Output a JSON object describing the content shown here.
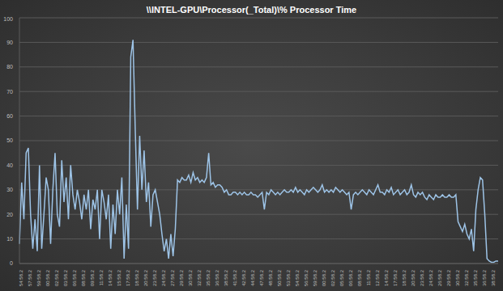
{
  "chart_data": {
    "type": "line",
    "title": "\\\\INTEL-GPU\\Processor(_Total)\\% Processor Time",
    "categories": [
      "54:58.2",
      null,
      null,
      null,
      "57:58.2",
      null,
      null,
      null,
      "59:58.2",
      null,
      null,
      null,
      "00:58.2",
      null,
      null,
      null,
      "02:58.2",
      null,
      null,
      null,
      "03:58.2",
      null,
      null,
      null,
      "06:58.2",
      null,
      null,
      null,
      "08:58.2",
      null,
      null,
      null,
      "09:58.2",
      null,
      null,
      null,
      "11:58.2",
      null,
      null,
      null,
      "14:58.2",
      null,
      null,
      null,
      "15:58.2",
      null,
      null,
      null,
      "17:58.2",
      null,
      null,
      null,
      "18:58.2",
      null,
      null,
      null,
      "20:58.2",
      null,
      null,
      null,
      "23:58.2",
      null,
      null,
      null,
      "24:58.2",
      null,
      null,
      null,
      "27:58.2",
      null,
      null,
      null,
      "29:58.2",
      null,
      null,
      null,
      "30:58.2",
      null,
      null,
      null,
      "32:58.2",
      null,
      null,
      null,
      "35:58.2",
      null,
      null,
      null,
      "36:58.2",
      null,
      null,
      null,
      "38:58.2",
      null,
      null,
      null,
      "41:58.2",
      null,
      null,
      null,
      "42:58.2",
      null,
      null,
      null,
      "44:58.2",
      null,
      null,
      null,
      "47:58.2",
      null,
      null,
      null,
      "48:58.2",
      null,
      null,
      null,
      "50:58.2",
      null,
      null,
      null,
      "53:58.2",
      null,
      null,
      null,
      "54:58.2",
      null,
      null,
      null,
      "56:58.2",
      null,
      null,
      null,
      "59:58.2",
      null,
      null,
      null,
      "00:58.2",
      null,
      null,
      null,
      "02:58.2",
      null,
      null,
      null,
      "05:58.2",
      null,
      null,
      null,
      "06:58.2",
      null,
      null,
      null,
      "08:58.2",
      null,
      null,
      null,
      "11:58.2",
      null,
      null,
      null,
      "12:58.2",
      null,
      null,
      null,
      "14:58.2",
      null,
      null,
      null,
      "17:58.2",
      null,
      null,
      null,
      "18:58.2",
      null,
      null,
      null,
      "20:58.2",
      null,
      null,
      null,
      "23:58.2",
      null,
      null,
      null,
      "24:58.2",
      null,
      null,
      null,
      "26:58.2",
      null,
      null,
      null,
      "29:58.2",
      null,
      null,
      null,
      "30:58.2",
      null,
      null,
      null,
      "32:58.2",
      null,
      null,
      null,
      "35:58.2",
      null,
      null,
      null,
      "36:58.2",
      null,
      null,
      null,
      "38:58.2",
      null,
      null,
      null
    ],
    "values": [
      8,
      33,
      18,
      45,
      47,
      20,
      6,
      18,
      5,
      40,
      6,
      20,
      35,
      30,
      8,
      30,
      45,
      20,
      15,
      42,
      25,
      35,
      18,
      40,
      28,
      22,
      30,
      25,
      18,
      28,
      22,
      30,
      14,
      26,
      22,
      30,
      10,
      30,
      25,
      18,
      28,
      6,
      24,
      12,
      30,
      20,
      35,
      2,
      24,
      6,
      84,
      91,
      55,
      22,
      52,
      30,
      46,
      25,
      33,
      15,
      28,
      30,
      25,
      20,
      12,
      5,
      10,
      2,
      12,
      3,
      14,
      34,
      33,
      35,
      34,
      34,
      36,
      33,
      37,
      34,
      35,
      33,
      34,
      33,
      35,
      45,
      32,
      33,
      31,
      32,
      32,
      31,
      29,
      30,
      28,
      28,
      29,
      29,
      28,
      29,
      28,
      29,
      28,
      28,
      29,
      28,
      28,
      27,
      28,
      29,
      22,
      29,
      28,
      30,
      29,
      28,
      29,
      28,
      29,
      30,
      29,
      29,
      30,
      29,
      31,
      29,
      30,
      29,
      28,
      30,
      29,
      30,
      31,
      30,
      29,
      30,
      32,
      29,
      30,
      29,
      30,
      29,
      31,
      30,
      29,
      30,
      29,
      28,
      29,
      22,
      28,
      29,
      28,
      29,
      30,
      29,
      28,
      30,
      29,
      28,
      30,
      32,
      29,
      29,
      28,
      30,
      29,
      31,
      28,
      29,
      30,
      28,
      29,
      30,
      28,
      29,
      32,
      28,
      27,
      29,
      28,
      29,
      27,
      26,
      28,
      27,
      26,
      28,
      27,
      27,
      28,
      27,
      27,
      28,
      27,
      27,
      28,
      17,
      15,
      13,
      16,
      12,
      10,
      14,
      5,
      22,
      30,
      35,
      34,
      20,
      2,
      1,
      0.5,
      0.5,
      1,
      1
    ],
    "color": "#9dc3e6",
    "ylim": [
      0,
      100
    ],
    "yticks": [
      0,
      10,
      20,
      30,
      40,
      50,
      60,
      70,
      80,
      90,
      100
    ],
    "grid": true
  }
}
